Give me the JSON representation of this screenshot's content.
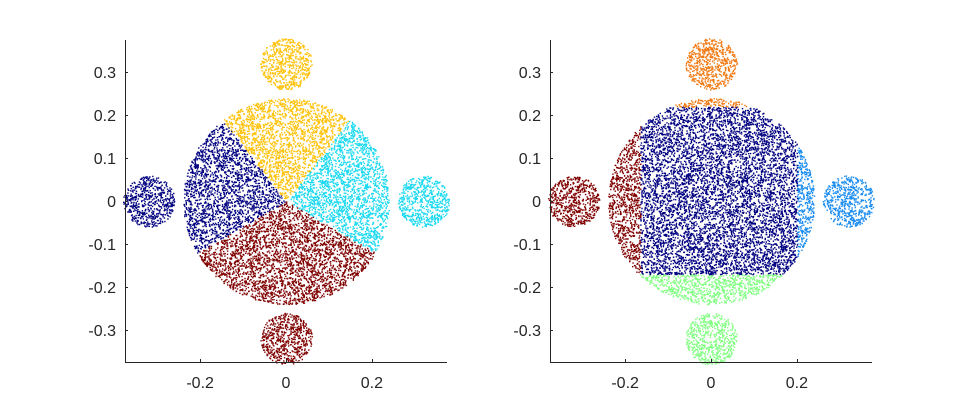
{
  "chart_data": [
    {
      "type": "scatter",
      "title": "",
      "xlabel": "",
      "ylabel": "",
      "xlim": [
        -0.375,
        0.375
      ],
      "ylim": [
        -0.375,
        0.375
      ],
      "xticks": [
        -0.2,
        0,
        0.2
      ],
      "xtick_labels": [
        "-0.2",
        "0",
        "0.2"
      ],
      "yticks": [
        0.3,
        0.2,
        0.1,
        0,
        -0.1,
        -0.2,
        -0.3
      ],
      "ytick_labels": [
        "0.3",
        "0.2",
        "0.1",
        "0",
        "-0.1",
        "-0.2",
        "-0.3"
      ],
      "grid": false,
      "legend": "none",
      "geometry": {
        "central_disk": {
          "center": [
            0,
            0
          ],
          "radius": 0.24
        },
        "satellite_disks": [
          {
            "center": [
              0,
              0.32
            ],
            "radius": 0.06
          },
          {
            "center": [
              0,
              -0.32
            ],
            "radius": 0.06
          },
          {
            "center": [
              -0.32,
              0
            ],
            "radius": 0.06
          },
          {
            "center": [
              0.32,
              0
            ],
            "radius": 0.06
          }
        ]
      },
      "clusters": [
        {
          "color": "#FFC20A",
          "region": "top satellite disk and central-disk wedge between polar angles 52° and 128°"
        },
        {
          "color": "#1AD9F0",
          "region": "right satellite disk and central-disk wedge between polar angles -30° and 52°"
        },
        {
          "color": "#800000",
          "region": "bottom satellite disk and central-disk wedge between polar angles -150° and -30°"
        },
        {
          "color": "#000080",
          "region": "left satellite disk and central-disk wedge between polar angles 128° and 210°"
        }
      ]
    },
    {
      "type": "scatter",
      "title": "",
      "xlabel": "",
      "ylabel": "",
      "xlim": [
        -0.375,
        0.375
      ],
      "ylim": [
        -0.375,
        0.375
      ],
      "xticks": [
        -0.2,
        0,
        0.2
      ],
      "xtick_labels": [
        "-0.2",
        "0",
        "0.2"
      ],
      "yticks": [
        0.3,
        0.2,
        0.1,
        0,
        -0.1,
        -0.2,
        -0.3
      ],
      "ytick_labels": [
        "0.3",
        "0.2",
        "0.1",
        "0",
        "-0.1",
        "-0.2",
        "-0.3"
      ],
      "grid": false,
      "legend": "none",
      "geometry": {
        "central_disk": {
          "center": [
            0,
            0
          ],
          "radius": 0.24
        },
        "satellite_disks": [
          {
            "center": [
              0,
              0.32
            ],
            "radius": 0.06
          },
          {
            "center": [
              0,
              -0.32
            ],
            "radius": 0.06
          },
          {
            "center": [
              -0.32,
              0
            ],
            "radius": 0.06
          },
          {
            "center": [
              0.32,
              0
            ],
            "radius": 0.06
          }
        ]
      },
      "clusters": [
        {
          "color": "#F07810",
          "region": "top satellite disk plus central-disk points with y > 0.22"
        },
        {
          "color": "#1A8CF0",
          "region": "right satellite disk plus central-disk points with x > 0.2"
        },
        {
          "color": "#80FF80",
          "region": "bottom satellite disk plus central-disk points with y < -0.17"
        },
        {
          "color": "#800000",
          "region": "left satellite disk plus central-disk points with x < -0.165"
        },
        {
          "color": "#000080",
          "region": "remaining central-disk points"
        }
      ]
    }
  ]
}
